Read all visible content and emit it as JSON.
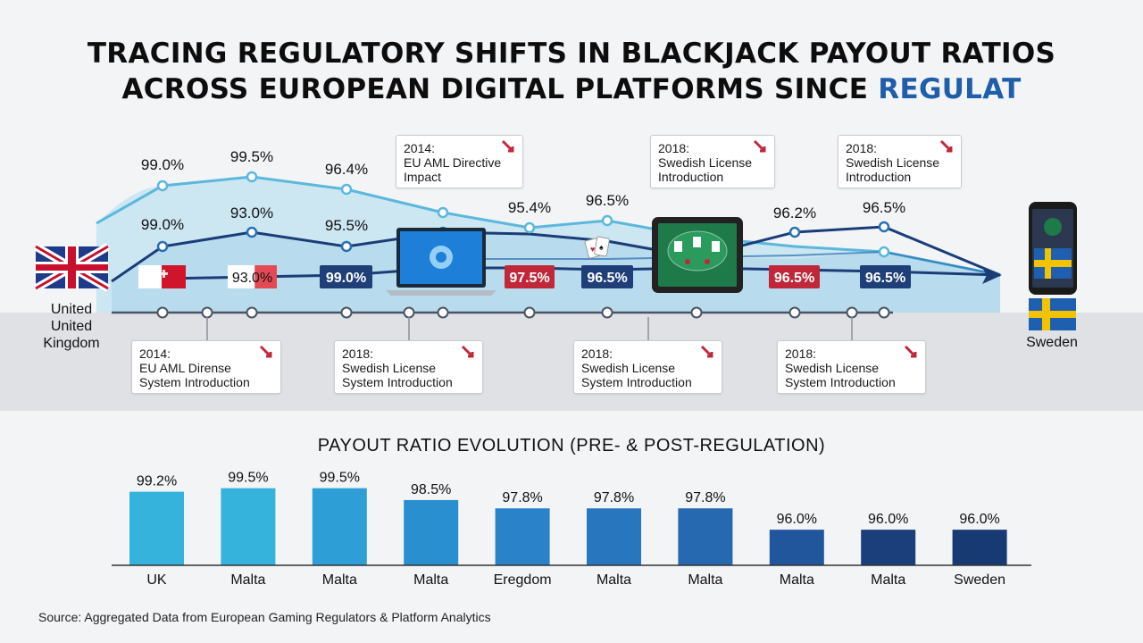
{
  "title": {
    "line1": "TRACING REGULATORY SHIFTS IN BLACKJACK PAYOUT RATIOS",
    "line2": "ACROSS EUROPEAN DIGITAL PLATFORMS SINCE",
    "line2_accent": "REGULAT"
  },
  "timeline": {
    "start_label_lines": [
      "United",
      "United",
      "Kingdom"
    ],
    "end_label": "Sweden",
    "upper_callouts": [
      {
        "lines": [
          "2014:",
          "EU AML Directive",
          "Impact"
        ]
      },
      {
        "lines": [
          "2018:",
          "Swedish License",
          "Introduction"
        ]
      },
      {
        "lines": [
          "2018:",
          "Swedish License",
          "Introduction"
        ]
      }
    ],
    "lower_callouts": [
      {
        "lines": [
          "2014:",
          "EU AML Dirense",
          "System Introduction"
        ]
      },
      {
        "lines": [
          "2018:",
          "Swedish License",
          "System Introduction"
        ]
      },
      {
        "lines": [
          "2018:",
          "Swedish License",
          "System Introduction"
        ]
      },
      {
        "lines": [
          "2018:",
          "Swedish License",
          "System Introduction"
        ]
      }
    ],
    "icons": [
      "uk-flag-icon",
      "malta-flag-icon",
      "laptop-icon",
      "playing-cards-icon",
      "tablet-icon",
      "smartphone-icon",
      "sweden-flag-icon",
      "trend-down-arrow-icon"
    ],
    "colors": {
      "top_line": "#5bb8dc",
      "mid_line": "#2a6fb0",
      "low_line": "#1a3d78",
      "badge_red": "#c0283a",
      "badge_navy": "#1f3f78"
    }
  },
  "chart_data": [
    {
      "type": "line",
      "series": [
        {
          "points": [
            {
              "label": "99.0%",
              "value": 99.0
            },
            {
              "label": "99.5%",
              "value": 99.5
            },
            {
              "label": "96.4%",
              "value": 96.4
            },
            {
              "label": "",
              "value": 96.0
            },
            {
              "label": "95.4%",
              "value": 95.4
            },
            {
              "label": "96.5%",
              "value": 96.5
            }
          ]
        },
        {
          "points": [
            {
              "label": "99.0%",
              "value": 99.0
            },
            {
              "label": "93.0%",
              "value": 93.0
            },
            {
              "label": "95.5%",
              "value": 95.5
            },
            {
              "label": "",
              "value": 95.6
            },
            {
              "label": "96.2%",
              "value": 96.2
            },
            {
              "label": "96.5%",
              "value": 96.5
            }
          ]
        }
      ],
      "badges": [
        {
          "label": "93.0%",
          "style": "red-white"
        },
        {
          "label": "99.0%",
          "style": "navy"
        },
        {
          "label": "97.5%",
          "style": "red"
        },
        {
          "label": "96.5%",
          "style": "navy"
        },
        {
          "label": "96.5%",
          "style": "red"
        },
        {
          "label": "96.5%",
          "style": "navy"
        }
      ]
    },
    {
      "type": "bar",
      "title": "PAYOUT RATIO EVOLUTION (PRE- & POST-REGULATION)",
      "categories": [
        "UK",
        "Malta",
        "Malta",
        "Malta",
        "Eregdom",
        "Malta",
        "Malta",
        "Malta",
        "Malta",
        "Sweden"
      ],
      "values": [
        99.2,
        99.5,
        99.5,
        98.5,
        97.8,
        97.8,
        97.8,
        96.0,
        96.0,
        96.0
      ],
      "value_labels": [
        "99.2%",
        "99.5%",
        "99.5%",
        "98.5%",
        "97.8%",
        "97.8%",
        "97.8%",
        "96.0%",
        "96.0%",
        "96.0%"
      ],
      "colors": [
        "#35b3dd",
        "#35b3dd",
        "#2d9fd6",
        "#2a8fcf",
        "#2a82c8",
        "#2877be",
        "#2669b0",
        "#21569c",
        "#1a3f7a",
        "#173a72"
      ],
      "ylim": [
        93,
        100
      ]
    }
  ],
  "source": "Source: Aggregated Data from European Gaming Regulators & Platform Analytics"
}
